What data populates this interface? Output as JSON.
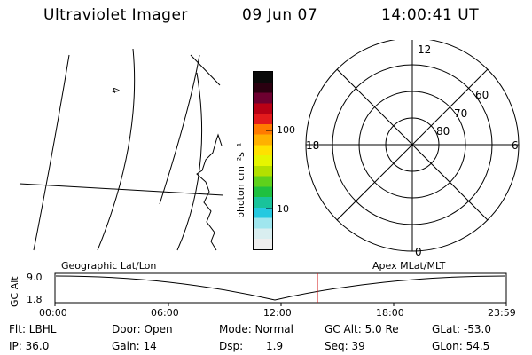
{
  "header": {
    "title": "Ultraviolet Imager",
    "date": "09 Jun 07",
    "time": "14:00:41 UT"
  },
  "map": {
    "contour_label": "4"
  },
  "colorbar": {
    "unit_label": "photon cm⁻²s⁻¹",
    "tick_100": "100",
    "tick_10": "10",
    "colors": [
      "#0a0a0a",
      "#2a0010",
      "#6e0030",
      "#b80015",
      "#e31a1c",
      "#ff7a00",
      "#ffb000",
      "#ffe100",
      "#e6f500",
      "#b3e000",
      "#5fd11c",
      "#1fc040",
      "#19c39b",
      "#25c9e0",
      "#9fe6ee",
      "#d9eef0",
      "#eeeeee"
    ]
  },
  "polar": {
    "mlt_top": "12",
    "mlt_left": "18",
    "mlt_right": "6",
    "mlt_bottom": "0",
    "lat_60": "60",
    "lat_70": "70",
    "lat_80": "80"
  },
  "altplot": {
    "ylabel": "GC Alt",
    "y_max": "9.0",
    "y_min": "1.8",
    "left_caption": "Geographic Lat/Lon",
    "right_caption": "Apex MLat/MLT",
    "x_ticks": [
      "00:00",
      "06:00",
      "12:00",
      "18:00",
      "23:59"
    ],
    "marker_color": "#d01010"
  },
  "status": {
    "flt": "Flt: LBHL",
    "door": "Door: Open",
    "mode": "Mode: Normal",
    "gcalt": "GC Alt: 5.0 Re",
    "glat": "GLat: -53.0",
    "ip": "IP: 36.0",
    "gain": "Gain: 14",
    "dsp_label": "Dsp:",
    "dsp_value": "1.9",
    "seq": "Seq: 39",
    "glon": "GLon:  54.5"
  }
}
